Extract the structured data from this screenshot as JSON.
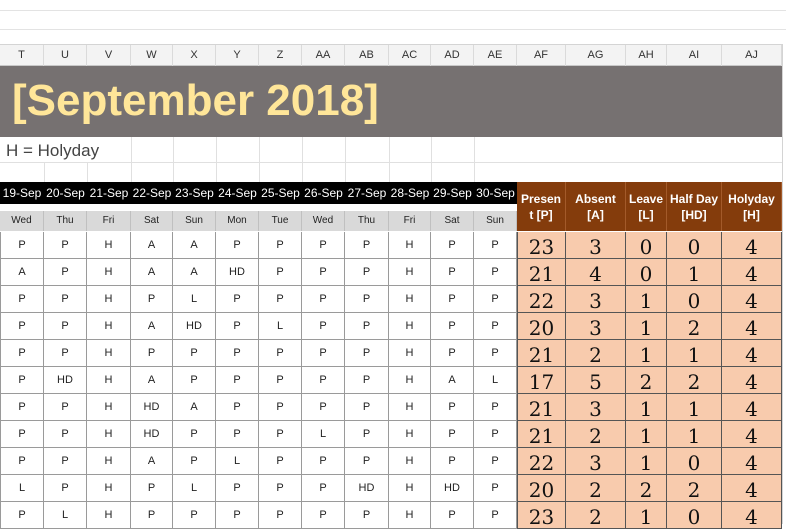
{
  "sheet": {
    "column_letters": [
      "T",
      "U",
      "V",
      "W",
      "X",
      "Y",
      "Z",
      "AA",
      "AB",
      "AC",
      "AD",
      "AE",
      "AF",
      "AG",
      "AH",
      "AI",
      "AJ"
    ],
    "title": "[September 2018]",
    "legend": "H = Holyday",
    "dates": [
      "19-Sep",
      "20-Sep",
      "21-Sep",
      "22-Sep",
      "23-Sep",
      "24-Sep",
      "25-Sep",
      "26-Sep",
      "27-Sep",
      "28-Sep",
      "29-Sep",
      "30-Sep"
    ],
    "weekdays": [
      "Wed",
      "Thu",
      "Fri",
      "Sat",
      "Sun",
      "Mon",
      "Tue",
      "Wed",
      "Thu",
      "Fri",
      "Sat",
      "Sun"
    ],
    "summary_headers": [
      {
        "line1": "Presen",
        "line2": "t [P]"
      },
      {
        "line1": "Absent",
        "line2": "[A]"
      },
      {
        "line1": "Leave",
        "line2": "[L]"
      },
      {
        "line1": "Half Day",
        "line2": "[HD]"
      },
      {
        "line1": "Holyday",
        "line2": "[H]"
      }
    ],
    "rows": [
      {
        "att": [
          "P",
          "P",
          "H",
          "A",
          "A",
          "P",
          "P",
          "P",
          "P",
          "H",
          "P",
          "P"
        ],
        "sum": [
          "23",
          "3",
          "0",
          "0",
          "4"
        ]
      },
      {
        "att": [
          "A",
          "P",
          "H",
          "A",
          "A",
          "HD",
          "P",
          "P",
          "P",
          "H",
          "P",
          "P"
        ],
        "sum": [
          "21",
          "4",
          "0",
          "1",
          "4"
        ]
      },
      {
        "att": [
          "P",
          "P",
          "H",
          "P",
          "L",
          "P",
          "P",
          "P",
          "P",
          "H",
          "P",
          "P"
        ],
        "sum": [
          "22",
          "3",
          "1",
          "0",
          "4"
        ]
      },
      {
        "att": [
          "P",
          "P",
          "H",
          "A",
          "HD",
          "P",
          "L",
          "P",
          "P",
          "H",
          "P",
          "P"
        ],
        "sum": [
          "20",
          "3",
          "1",
          "2",
          "4"
        ]
      },
      {
        "att": [
          "P",
          "P",
          "H",
          "P",
          "P",
          "P",
          "P",
          "P",
          "P",
          "H",
          "P",
          "P"
        ],
        "sum": [
          "21",
          "2",
          "1",
          "1",
          "4"
        ]
      },
      {
        "att": [
          "P",
          "HD",
          "H",
          "A",
          "P",
          "P",
          "P",
          "P",
          "P",
          "H",
          "A",
          "L"
        ],
        "sum": [
          "17",
          "5",
          "2",
          "2",
          "4"
        ]
      },
      {
        "att": [
          "P",
          "P",
          "H",
          "HD",
          "A",
          "P",
          "P",
          "P",
          "P",
          "H",
          "P",
          "P"
        ],
        "sum": [
          "21",
          "3",
          "1",
          "1",
          "4"
        ]
      },
      {
        "att": [
          "P",
          "P",
          "H",
          "HD",
          "P",
          "P",
          "P",
          "L",
          "P",
          "H",
          "P",
          "P"
        ],
        "sum": [
          "21",
          "2",
          "1",
          "1",
          "4"
        ]
      },
      {
        "att": [
          "P",
          "P",
          "H",
          "A",
          "P",
          "L",
          "P",
          "P",
          "P",
          "H",
          "P",
          "P"
        ],
        "sum": [
          "22",
          "3",
          "1",
          "0",
          "4"
        ]
      },
      {
        "att": [
          "L",
          "P",
          "H",
          "P",
          "L",
          "P",
          "P",
          "P",
          "HD",
          "H",
          "HD",
          "P"
        ],
        "sum": [
          "20",
          "2",
          "2",
          "2",
          "4"
        ]
      },
      {
        "att": [
          "P",
          "L",
          "H",
          "P",
          "P",
          "P",
          "P",
          "P",
          "P",
          "H",
          "P",
          "P"
        ],
        "sum": [
          "23",
          "2",
          "1",
          "0",
          "4"
        ]
      }
    ]
  },
  "colors": {
    "banner": "#767171",
    "title_text": "#ffe699",
    "summary_header": "#843c0c",
    "summary_cell": "#f8cbad",
    "date_header": "#000000",
    "weekday_header": "#d9d9d9"
  }
}
